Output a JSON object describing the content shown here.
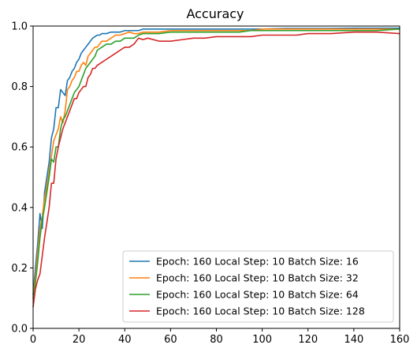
{
  "chart_data": {
    "type": "line",
    "title": "Accuracy",
    "xlabel": "",
    "ylabel": "",
    "xlim": [
      0,
      160
    ],
    "ylim": [
      0,
      1.0
    ],
    "xticks": [
      "0",
      "20",
      "40",
      "60",
      "80",
      "100",
      "120",
      "140",
      "160"
    ],
    "yticks": [
      "0.0",
      "0.2",
      "0.4",
      "0.6",
      "0.8",
      "1.0"
    ],
    "grid": false,
    "legend_position": "lower-right",
    "series": [
      {
        "name": "Epoch: 160 Local Step: 10 Batch Size: 16",
        "color": "#1f77b4",
        "x": [
          0,
          1,
          2,
          3,
          4,
          5,
          6,
          7,
          8,
          9,
          10,
          11,
          12,
          13,
          14,
          15,
          16,
          17,
          18,
          19,
          20,
          21,
          22,
          23,
          24,
          25,
          26,
          27,
          28,
          29,
          30,
          32,
          34,
          36,
          38,
          40,
          42,
          44,
          46,
          48,
          50,
          55,
          60,
          65,
          70,
          75,
          80,
          85,
          90,
          95,
          100,
          110,
          120,
          130,
          140,
          150,
          160
        ],
        "y": [
          0.11,
          0.2,
          0.28,
          0.38,
          0.33,
          0.45,
          0.5,
          0.55,
          0.63,
          0.66,
          0.73,
          0.73,
          0.79,
          0.78,
          0.77,
          0.82,
          0.83,
          0.85,
          0.86,
          0.88,
          0.89,
          0.91,
          0.92,
          0.93,
          0.94,
          0.95,
          0.96,
          0.965,
          0.97,
          0.97,
          0.975,
          0.975,
          0.98,
          0.98,
          0.98,
          0.985,
          0.985,
          0.985,
          0.985,
          0.99,
          0.99,
          0.99,
          0.99,
          0.99,
          0.99,
          0.99,
          0.99,
          0.99,
          0.99,
          0.99,
          0.99,
          0.992,
          0.992,
          0.992,
          0.993,
          0.993,
          0.993
        ]
      },
      {
        "name": "Epoch: 160 Local Step: 10 Batch Size: 32",
        "color": "#ff7f0e",
        "x": [
          0,
          1,
          2,
          3,
          4,
          5,
          6,
          7,
          8,
          9,
          10,
          11,
          12,
          13,
          14,
          15,
          16,
          17,
          18,
          19,
          20,
          21,
          22,
          23,
          24,
          25,
          26,
          27,
          28,
          30,
          32,
          34,
          36,
          38,
          40,
          42,
          44,
          46,
          48,
          50,
          55,
          60,
          65,
          70,
          75,
          80,
          85,
          90,
          95,
          100,
          110,
          120,
          130,
          140,
          150,
          160
        ],
        "y": [
          0.1,
          0.17,
          0.25,
          0.33,
          0.37,
          0.43,
          0.47,
          0.52,
          0.57,
          0.62,
          0.64,
          0.66,
          0.7,
          0.68,
          0.72,
          0.79,
          0.8,
          0.82,
          0.83,
          0.85,
          0.85,
          0.87,
          0.88,
          0.87,
          0.9,
          0.91,
          0.92,
          0.93,
          0.93,
          0.95,
          0.95,
          0.96,
          0.97,
          0.97,
          0.975,
          0.98,
          0.975,
          0.975,
          0.98,
          0.98,
          0.98,
          0.985,
          0.985,
          0.985,
          0.985,
          0.985,
          0.985,
          0.985,
          0.985,
          0.99,
          0.99,
          0.99,
          0.99,
          0.99,
          0.99,
          0.99
        ]
      },
      {
        "name": "Epoch: 160 Local Step: 10 Batch Size: 64",
        "color": "#2ca02c",
        "x": [
          0,
          1,
          2,
          3,
          4,
          5,
          6,
          7,
          8,
          9,
          10,
          11,
          12,
          13,
          14,
          15,
          16,
          17,
          18,
          19,
          20,
          21,
          22,
          23,
          24,
          25,
          26,
          27,
          28,
          30,
          32,
          34,
          36,
          38,
          40,
          42,
          44,
          46,
          48,
          50,
          55,
          60,
          65,
          70,
          75,
          80,
          85,
          90,
          95,
          100,
          110,
          120,
          130,
          140,
          150,
          160
        ],
        "y": [
          0.1,
          0.15,
          0.22,
          0.3,
          0.36,
          0.4,
          0.45,
          0.5,
          0.56,
          0.55,
          0.6,
          0.6,
          0.66,
          0.69,
          0.7,
          0.72,
          0.74,
          0.76,
          0.78,
          0.79,
          0.8,
          0.82,
          0.84,
          0.86,
          0.87,
          0.88,
          0.89,
          0.9,
          0.92,
          0.93,
          0.94,
          0.94,
          0.95,
          0.95,
          0.96,
          0.96,
          0.96,
          0.97,
          0.975,
          0.975,
          0.975,
          0.98,
          0.98,
          0.98,
          0.98,
          0.98,
          0.98,
          0.98,
          0.985,
          0.985,
          0.985,
          0.985,
          0.985,
          0.985,
          0.985,
          0.99
        ]
      },
      {
        "name": "Epoch: 160 Local Step: 10 Batch Size: 128",
        "color": "#d62728",
        "x": [
          0,
          1,
          2,
          3,
          4,
          5,
          6,
          7,
          8,
          9,
          10,
          11,
          12,
          13,
          14,
          15,
          16,
          17,
          18,
          19,
          20,
          21,
          22,
          23,
          24,
          25,
          26,
          27,
          28,
          30,
          32,
          34,
          36,
          38,
          40,
          42,
          44,
          46,
          48,
          50,
          55,
          60,
          65,
          70,
          75,
          80,
          85,
          90,
          95,
          100,
          105,
          110,
          115,
          120,
          130,
          140,
          150,
          160
        ],
        "y": [
          0.07,
          0.13,
          0.16,
          0.18,
          0.24,
          0.3,
          0.35,
          0.4,
          0.48,
          0.48,
          0.56,
          0.6,
          0.63,
          0.66,
          0.68,
          0.7,
          0.72,
          0.74,
          0.76,
          0.76,
          0.78,
          0.79,
          0.8,
          0.8,
          0.83,
          0.84,
          0.86,
          0.86,
          0.87,
          0.88,
          0.89,
          0.9,
          0.91,
          0.92,
          0.93,
          0.93,
          0.94,
          0.96,
          0.955,
          0.96,
          0.95,
          0.95,
          0.955,
          0.96,
          0.96,
          0.965,
          0.965,
          0.965,
          0.965,
          0.97,
          0.97,
          0.97,
          0.97,
          0.975,
          0.975,
          0.98,
          0.98,
          0.975
        ]
      }
    ]
  }
}
